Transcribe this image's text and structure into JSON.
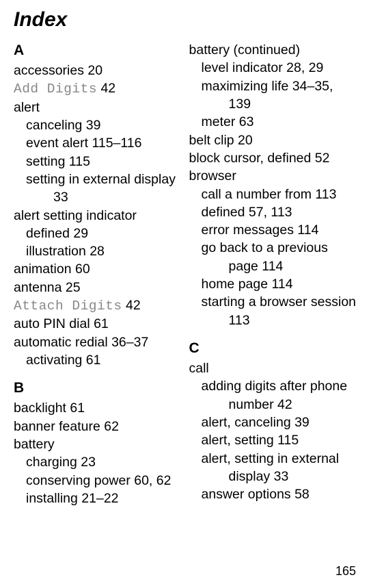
{
  "title": "Index",
  "page_number": "165",
  "left": {
    "sectionA": {
      "letter": "A",
      "entries": [
        {
          "level": 0,
          "text": "accessories  20"
        },
        {
          "level": 0,
          "code": "Add Digits",
          "suffix": "  42"
        },
        {
          "level": 0,
          "text": "alert"
        },
        {
          "level": 1,
          "text": "canceling  39"
        },
        {
          "level": 1,
          "text": "event alert  115–116"
        },
        {
          "level": 1,
          "text": "setting  115"
        },
        {
          "level": 1,
          "text": "setting in external display  "
        },
        {
          "level": 2,
          "text": "33"
        },
        {
          "level": 0,
          "text": "alert setting indicator"
        },
        {
          "level": 1,
          "text": "defined  29"
        },
        {
          "level": 1,
          "text": "illustration  28"
        },
        {
          "level": 0,
          "text": "animation  60"
        },
        {
          "level": 0,
          "text": "antenna  25"
        },
        {
          "level": 0,
          "code": "Attach Digits",
          "suffix": "  42"
        },
        {
          "level": 0,
          "text": "auto PIN dial  61"
        },
        {
          "level": 0,
          "text": "automatic redial  36–37"
        },
        {
          "level": 1,
          "text": "activating  61"
        }
      ]
    },
    "sectionB": {
      "letter": "B",
      "entries": [
        {
          "level": 0,
          "text": "backlight  61"
        },
        {
          "level": 0,
          "text": "banner feature  62"
        },
        {
          "level": 0,
          "text": "battery"
        },
        {
          "level": 1,
          "text": "charging  23"
        },
        {
          "level": 1,
          "text": "conserving power  60, 62"
        },
        {
          "level": 1,
          "text": "installing  21–22"
        }
      ]
    }
  },
  "right": {
    "batteryCont": {
      "entries": [
        {
          "level": 0,
          "text": "battery (continued)"
        },
        {
          "level": 1,
          "text": "level indicator  28, 29"
        },
        {
          "level": 1,
          "text": "maximizing life  34–35, "
        },
        {
          "level": 2,
          "text": "139"
        },
        {
          "level": 1,
          "text": "meter  63"
        },
        {
          "level": 0,
          "text": "belt clip  20"
        },
        {
          "level": 0,
          "text": "block cursor, defined  52"
        },
        {
          "level": 0,
          "text": "browser"
        },
        {
          "level": 1,
          "text": "call a number from  113"
        },
        {
          "level": 1,
          "text": "defined  57, 113"
        },
        {
          "level": 1,
          "text": "error messages  114"
        },
        {
          "level": 1,
          "text": "go back to a previous "
        },
        {
          "level": 2,
          "text": "page  114"
        },
        {
          "level": 1,
          "text": "home page  114"
        },
        {
          "level": 1,
          "text": "starting a browser session  "
        },
        {
          "level": 2,
          "text": "113"
        }
      ]
    },
    "sectionC": {
      "letter": "C",
      "entries": [
        {
          "level": 0,
          "text": "call"
        },
        {
          "level": 1,
          "text": "adding digits after phone "
        },
        {
          "level": 2,
          "text": "number  42"
        },
        {
          "level": 1,
          "text": "alert, canceling  39"
        },
        {
          "level": 1,
          "text": "alert, setting  115"
        },
        {
          "level": 1,
          "text": "alert, setting in external "
        },
        {
          "level": 2,
          "text": "display  33"
        },
        {
          "level": 1,
          "text": "answer options  58"
        }
      ]
    }
  }
}
